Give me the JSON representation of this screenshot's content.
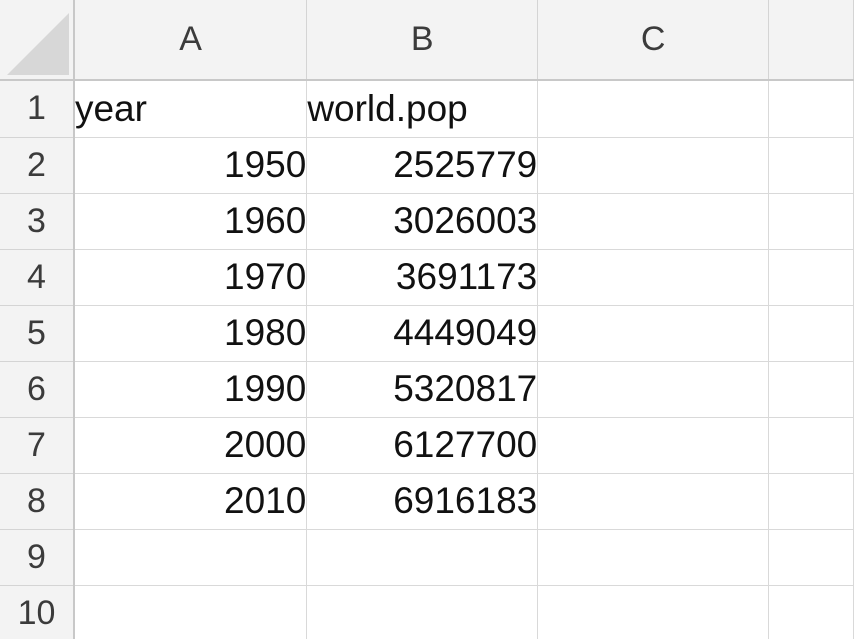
{
  "columns": [
    "A",
    "B",
    "C",
    ""
  ],
  "rows": [
    {
      "num": "1",
      "a": "year",
      "b": "world.pop",
      "c": "",
      "d": ""
    },
    {
      "num": "2",
      "a": "1950",
      "b": "2525779",
      "c": "",
      "d": ""
    },
    {
      "num": "3",
      "a": "1960",
      "b": "3026003",
      "c": "",
      "d": ""
    },
    {
      "num": "4",
      "a": "1970",
      "b": "3691173",
      "c": "",
      "d": ""
    },
    {
      "num": "5",
      "a": "1980",
      "b": "4449049",
      "c": "",
      "d": ""
    },
    {
      "num": "6",
      "a": "1990",
      "b": "5320817",
      "c": "",
      "d": ""
    },
    {
      "num": "7",
      "a": "2000",
      "b": "6127700",
      "c": "",
      "d": ""
    },
    {
      "num": "8",
      "a": "2010",
      "b": "6916183",
      "c": "",
      "d": ""
    },
    {
      "num": "9",
      "a": "",
      "b": "",
      "c": "",
      "d": ""
    },
    {
      "num": "10",
      "a": "",
      "b": "",
      "c": "",
      "d": ""
    }
  ],
  "colors": {
    "header_bg": "#f3f3f3",
    "grid_line": "#d9d9d9",
    "header_text": "#3b3b3b",
    "cell_text": "#111111"
  }
}
